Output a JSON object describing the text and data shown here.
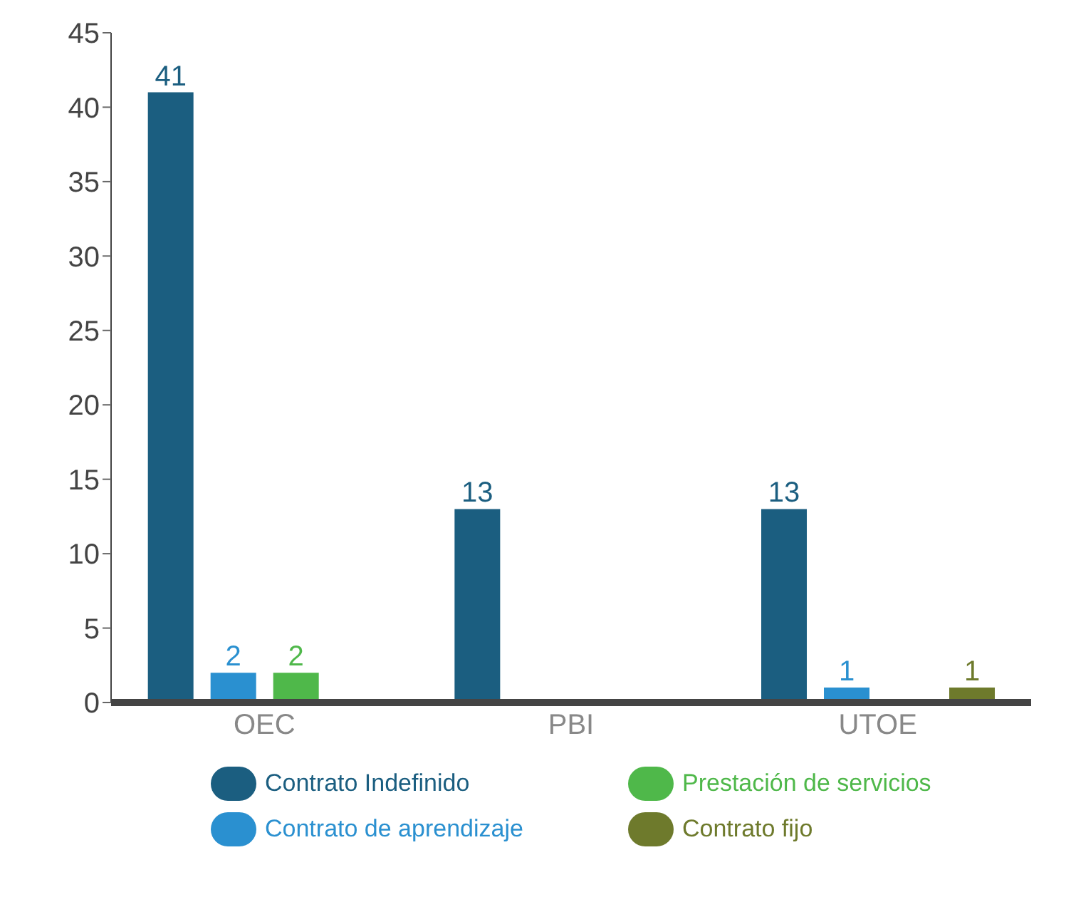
{
  "chart_data": {
    "type": "bar",
    "categories": [
      "OEC",
      "PBI",
      "UTOE"
    ],
    "series": [
      {
        "name": "Contrato Indefinido",
        "color": "#1b5e80",
        "values": [
          41,
          13,
          13
        ]
      },
      {
        "name": "Contrato de aprendizaje",
        "color": "#2a90d0",
        "values": [
          2,
          null,
          1
        ]
      },
      {
        "name": "Prestación de servicios",
        "color": "#4fb84a",
        "values": [
          2,
          null,
          null
        ]
      },
      {
        "name": "Contrato fijo",
        "color": "#6e7a2c",
        "values": [
          null,
          null,
          1
        ]
      }
    ],
    "ylim": [
      0,
      45
    ],
    "yticks": [
      0,
      5,
      10,
      15,
      20,
      25,
      30,
      35,
      40,
      45
    ],
    "legend": "bottom",
    "data_labels": true
  }
}
